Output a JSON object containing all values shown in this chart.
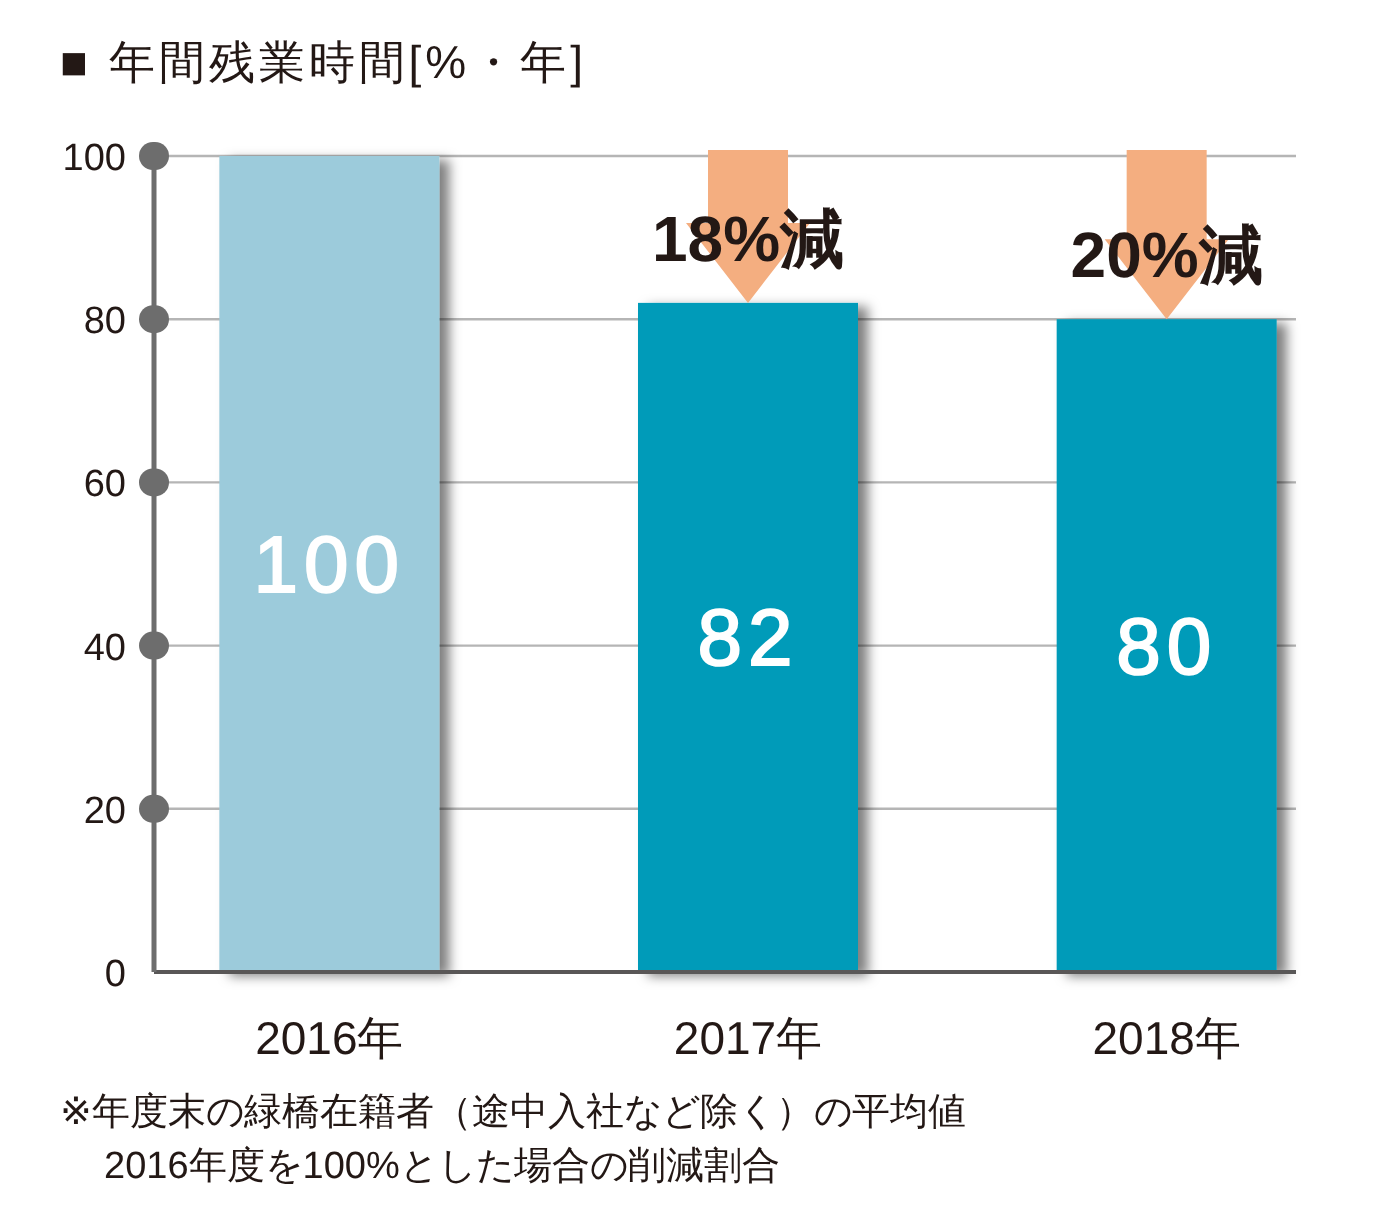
{
  "chart_data": {
    "type": "bar",
    "title": "■ 年間残業時間[%・年]",
    "categories": [
      "2016年",
      "2017年",
      "2018年"
    ],
    "values": [
      100,
      82,
      80
    ],
    "colors": [
      "#9ccbdb",
      "#009bb9",
      "#009bb9"
    ],
    "ylim": [
      0,
      100
    ],
    "yticks": [
      0,
      20,
      40,
      60,
      80,
      100
    ],
    "grid": "y",
    "data_labels": true,
    "annotations": [
      {
        "text": "18%減",
        "x": "2017年",
        "y": 82
      },
      {
        "text": "20%減",
        "x": "2018年",
        "y": 80
      },
      "※年度末の緑橋在籍者（途中入社など除く）の平均値",
      "2016年度を100%とした場合の削減割合"
    ]
  }
}
